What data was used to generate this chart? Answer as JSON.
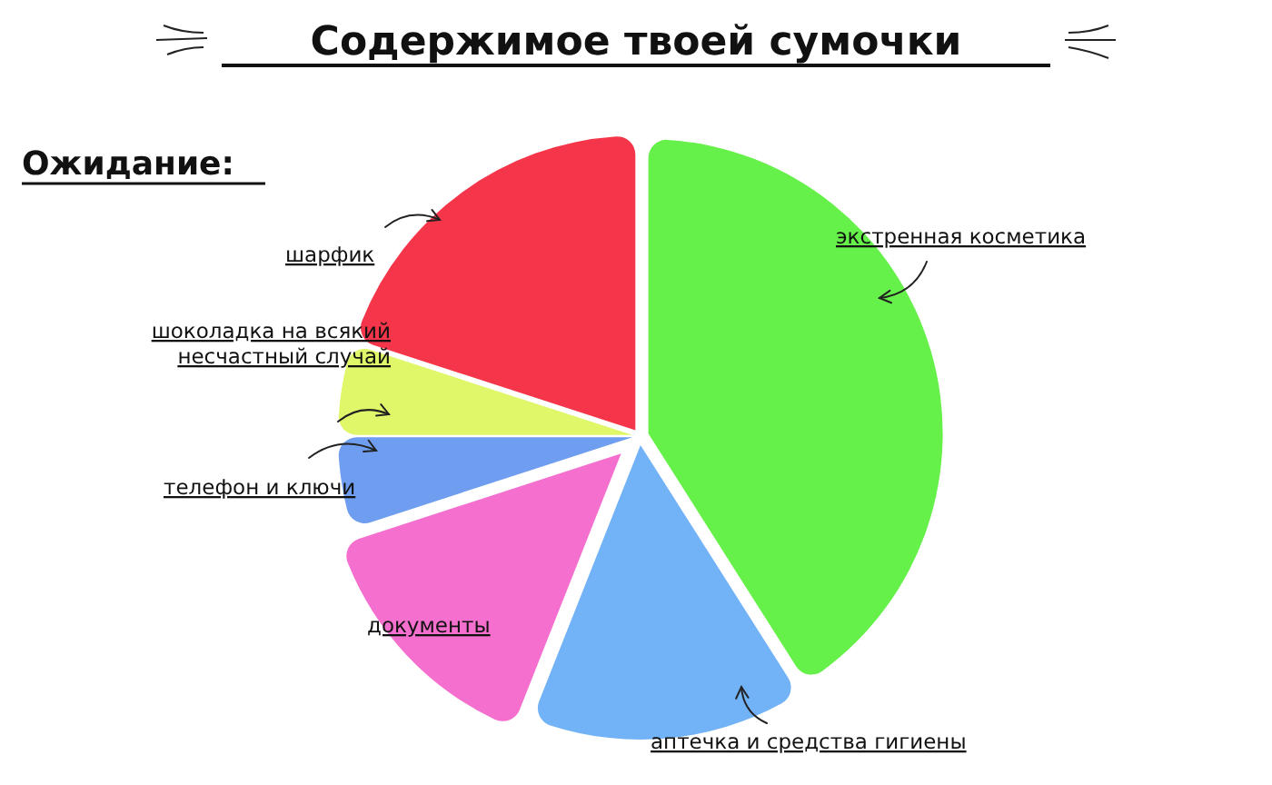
{
  "chart_data": {
    "type": "pie",
    "title": "Содержимое твоей сумочки",
    "subtitle": "Ожидание:",
    "categories": [
      "экстренная косметика",
      "аптечка и средства гигиены",
      "документы",
      "телефон и ключи",
      "шоколадка на всякий несчастный случай",
      "шарфик"
    ],
    "values": [
      41,
      15,
      14,
      5,
      5,
      20
    ],
    "colors": [
      "#66f04a",
      "#72b2f7",
      "#f56fcf",
      "#6f9ef0",
      "#e0f76a",
      "#f5364a"
    ],
    "legend": false
  }
}
